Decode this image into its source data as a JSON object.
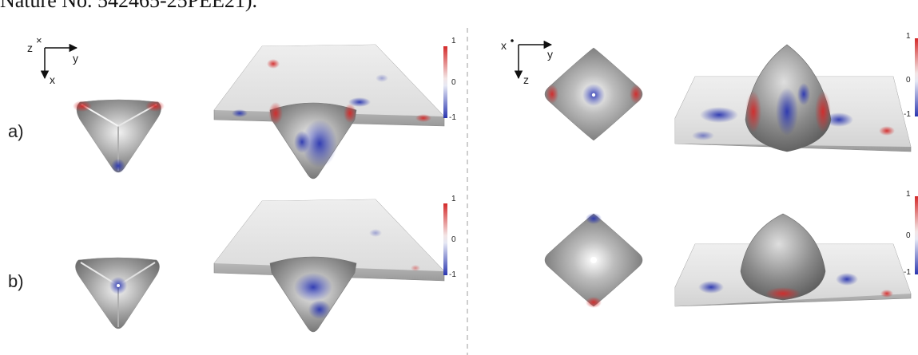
{
  "caption_fragment": "Nature No. 542465-25PEE21).",
  "left_panel": {
    "axes": {
      "out_of_plane": "z",
      "right": "y",
      "down": "x"
    },
    "rows": [
      {
        "label": "a)",
        "colorbar": {
          "max": "1",
          "mid": "0",
          "min": "-1"
        }
      },
      {
        "label": "b)",
        "colorbar": {
          "max": "1",
          "mid": "0",
          "min": "-1"
        }
      }
    ]
  },
  "right_panel": {
    "axes": {
      "out_of_plane": "x",
      "right": "y",
      "down": "z"
    },
    "rows": [
      {
        "colorbar": {
          "max": "1",
          "mid": "0",
          "min": "-1"
        }
      },
      {
        "colorbar": {
          "max": "1",
          "mid": "0",
          "min": "-1"
        }
      }
    ]
  },
  "colors": {
    "positive": "#d42a2a",
    "negative": "#2a36b0",
    "neutral_surface": "#c8c8c8",
    "divider": "#bdbdbd"
  }
}
